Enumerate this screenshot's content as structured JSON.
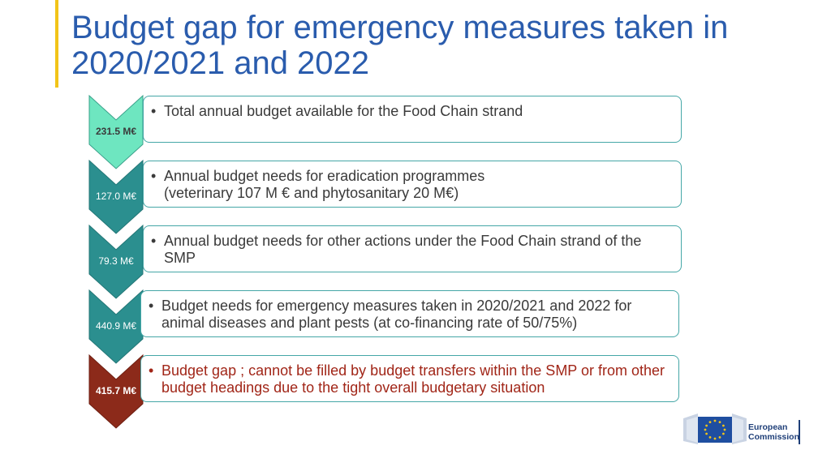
{
  "title": {
    "line1": "Budget gap for emergency measures taken in",
    "line2": "2020/2021 and 2022"
  },
  "bullet_char": "•",
  "colors": {
    "title": "#2a5cad",
    "accent": "#f2c418",
    "teal": "#2b8f8f",
    "mint": "#6ee6c0",
    "gap_red": "#8c2a1a",
    "box_border": "#45a7a7"
  },
  "steps": [
    {
      "amount": "231.5 M€",
      "text": "Total annual budget available for the Food Chain strand"
    },
    {
      "amount": "127.0 M€",
      "text": "Annual budget needs for eradication programmes (veterinary 107 M € and phytosanitary 20 M€)"
    },
    {
      "amount": "79.3 M€",
      "text": "Annual budget needs for other actions under the Food Chain strand of the SMP"
    },
    {
      "amount": "440.9 M€",
      "text": "Budget needs for emergency measures taken in 2020/2021 and 2022 for animal diseases and plant pests (at co-financing rate of 50/75%)"
    },
    {
      "amount": "415.7 M€",
      "text": "Budget gap ; cannot be filled by budget transfers within the SMP or from other budget headings due to the tight overall budgetary situation"
    }
  ],
  "logo": {
    "line1": "European",
    "line2": "Commission",
    "icon": "eu-flag-icon"
  }
}
